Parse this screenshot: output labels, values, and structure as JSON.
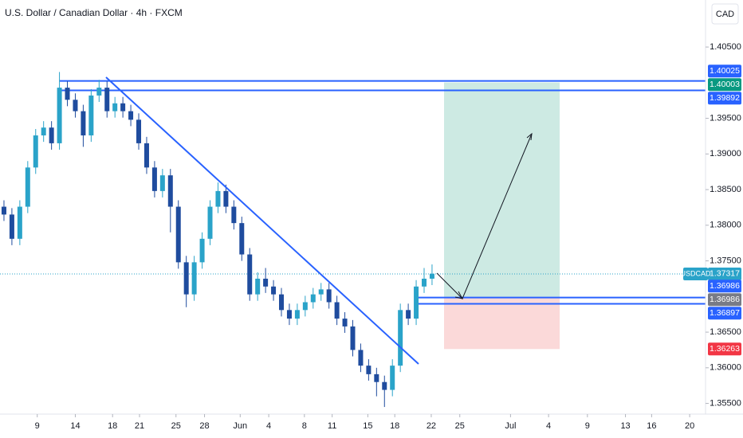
{
  "chart_data": {
    "type": "candlestick",
    "title": "U.S. Dollar / Canadian Dollar · 4h · FXCM",
    "currency": "CAD",
    "symbol": "USDCAD",
    "last_price": 1.37317,
    "up_color": "#2aa3c9",
    "down_color": "#1f4c9e",
    "x": [
      0,
      1,
      2,
      3,
      4,
      5,
      6,
      7,
      8,
      9,
      10,
      11,
      12,
      13,
      14,
      15,
      16,
      17,
      18,
      19,
      20,
      21,
      22,
      23,
      24,
      25,
      26,
      27,
      28,
      29,
      30,
      31,
      32,
      33,
      34,
      35,
      36,
      37,
      38,
      39,
      40,
      41,
      42,
      43,
      44,
      45,
      46,
      47,
      48,
      49,
      50,
      51,
      52,
      53,
      54
    ],
    "open": [
      1.3826,
      1.3815,
      1.3781,
      1.3826,
      1.3881,
      1.3926,
      1.3937,
      1.3915,
      1.3993,
      1.3976,
      1.396,
      1.3926,
      1.3982,
      1.3993,
      1.396,
      1.3971,
      1.396,
      1.3948,
      1.3915,
      1.3881,
      1.3848,
      1.387,
      1.3826,
      1.3748,
      1.3703,
      1.3748,
      1.3781,
      1.3826,
      1.3848,
      1.3826,
      1.3803,
      1.3759,
      1.3703,
      1.3725,
      1.3714,
      1.3703,
      1.3681,
      1.3669,
      1.3681,
      1.3692,
      1.3703,
      1.371,
      1.3692,
      1.3669,
      1.3658,
      1.3625,
      1.3603,
      1.3591,
      1.358,
      1.3569,
      1.3603,
      1.3681,
      1.3669,
      1.3714,
      1.3725
    ],
    "high": [
      1.3835,
      1.3824,
      1.3835,
      1.389,
      1.3935,
      1.3946,
      1.3946,
      1.4015,
      1.4002,
      1.3985,
      1.3969,
      1.3991,
      1.4004,
      1.4002,
      1.398,
      1.398,
      1.3969,
      1.3957,
      1.3924,
      1.389,
      1.3879,
      1.3879,
      1.3835,
      1.3757,
      1.3757,
      1.379,
      1.3835,
      1.386,
      1.3857,
      1.3835,
      1.3812,
      1.3768,
      1.3734,
      1.374,
      1.3723,
      1.3712,
      1.369,
      1.369,
      1.3701,
      1.3712,
      1.3719,
      1.3719,
      1.3701,
      1.3678,
      1.3667,
      1.3634,
      1.3612,
      1.36,
      1.3589,
      1.3612,
      1.369,
      1.369,
      1.3723,
      1.374,
      1.3745
    ],
    "low": [
      1.3806,
      1.3772,
      1.3772,
      1.3817,
      1.3872,
      1.3917,
      1.3906,
      1.3906,
      1.3967,
      1.3951,
      1.391,
      1.3917,
      1.3973,
      1.3951,
      1.3951,
      1.3951,
      1.3939,
      1.3906,
      1.3872,
      1.3839,
      1.3839,
      1.379,
      1.3739,
      1.3685,
      1.3694,
      1.3739,
      1.3772,
      1.3817,
      1.3817,
      1.3794,
      1.375,
      1.3694,
      1.3694,
      1.3705,
      1.3694,
      1.3672,
      1.366,
      1.366,
      1.3672,
      1.3683,
      1.3694,
      1.3683,
      1.366,
      1.3649,
      1.3616,
      1.3594,
      1.3582,
      1.356,
      1.3545,
      1.356,
      1.3594,
      1.366,
      1.366,
      1.3705,
      1.3716
    ],
    "close": [
      1.3815,
      1.3781,
      1.3826,
      1.3881,
      1.3926,
      1.3937,
      1.3915,
      1.3993,
      1.3976,
      1.396,
      1.3926,
      1.3982,
      1.3993,
      1.396,
      1.3971,
      1.396,
      1.3948,
      1.3915,
      1.3881,
      1.3848,
      1.387,
      1.3826,
      1.3748,
      1.3703,
      1.3748,
      1.3781,
      1.3826,
      1.3848,
      1.3826,
      1.3803,
      1.3759,
      1.3703,
      1.3725,
      1.3714,
      1.3703,
      1.3681,
      1.3669,
      1.3681,
      1.3692,
      1.3703,
      1.371,
      1.3692,
      1.3669,
      1.3658,
      1.3625,
      1.3603,
      1.3591,
      1.358,
      1.3569,
      1.3603,
      1.3681,
      1.3669,
      1.3714,
      1.3725,
      1.3732
    ],
    "xlim": [
      -0.5,
      88.5
    ],
    "xticks": [
      {
        "value": 4.2,
        "label": "9"
      },
      {
        "value": 9,
        "label": "14"
      },
      {
        "value": 13.7,
        "label": "18"
      },
      {
        "value": 17.1,
        "label": "21"
      },
      {
        "value": 21.7,
        "label": "25"
      },
      {
        "value": 25.3,
        "label": "28"
      },
      {
        "value": 29.8,
        "label": "Jun"
      },
      {
        "value": 33.4,
        "label": "4"
      },
      {
        "value": 37.9,
        "label": "8"
      },
      {
        "value": 41.4,
        "label": "11"
      },
      {
        "value": 45.9,
        "label": "15"
      },
      {
        "value": 49.3,
        "label": "18"
      },
      {
        "value": 53.9,
        "label": "22"
      },
      {
        "value": 57.5,
        "label": "25"
      },
      {
        "value": 63.9,
        "label": "Jul"
      },
      {
        "value": 68.7,
        "label": "4"
      },
      {
        "value": 73.6,
        "label": "9"
      },
      {
        "value": 78.4,
        "label": "13"
      },
      {
        "value": 81.7,
        "label": "16"
      },
      {
        "value": 86.5,
        "label": "20"
      }
    ],
    "ylim": [
      1.3535,
      1.4116
    ],
    "yticks": [
      {
        "value": 1.405,
        "label": "1.40500"
      },
      {
        "value": 1.395,
        "label": "1.39500"
      },
      {
        "value": 1.39,
        "label": "1.39000"
      },
      {
        "value": 1.385,
        "label": "1.38500"
      },
      {
        "value": 1.38,
        "label": "1.38000"
      },
      {
        "value": 1.375,
        "label": "1.37500"
      },
      {
        "value": 1.365,
        "label": "1.36500"
      },
      {
        "value": 1.36,
        "label": "1.36000"
      },
      {
        "value": 1.355,
        "label": "1.35500"
      }
    ],
    "levels": [
      {
        "value": 1.40025,
        "color": "#2962ff"
      },
      {
        "value": 1.40003,
        "color": "#089981"
      },
      {
        "value": 1.39892,
        "color": "#2962ff"
      },
      {
        "value": 1.36986,
        "color": "#2962ff"
      },
      {
        "value": 1.36986,
        "color": "#787b86"
      },
      {
        "value": 1.36897,
        "color": "#2962ff"
      },
      {
        "value": 1.36263,
        "color": "#f23645"
      }
    ],
    "position": {
      "target": 1.40003,
      "entry": 1.36986,
      "stop": 1.36263,
      "target_color": "#cdeae3",
      "stop_color": "#fbd9d9"
    }
  }
}
